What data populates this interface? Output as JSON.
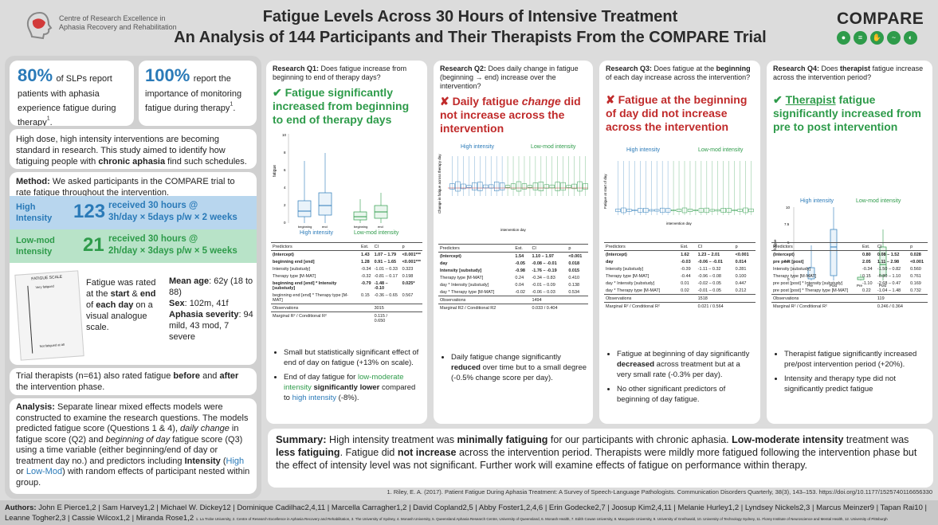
{
  "header": {
    "title_line1": "Fatigue Levels Across 30 Hours of Intensive Treatment",
    "title_line2": "An Analysis of 144 Participants and Their Therapists From the COMPARE Trial",
    "left_logo": "Centre of Research Excellence in Aphasia Recovery and Rehabilitation",
    "right_logo": "COMPARE"
  },
  "left": {
    "stat1_num": "80%",
    "stat1_txt": "of SLPs report patients with aphasia experience fatigue during therapy",
    "stat1_sup": "1",
    "stat1_end": ".",
    "stat2_num": "100%",
    "stat2_txt": "report the importance of monitoring fatigue during therapy",
    "stat2_sup": "1",
    "stat2_end": ".",
    "intro_a": "High dose, high intensity interventions are becoming standard in research. This study aimed to identify how fatiguing people with ",
    "intro_b": "chronic aphasia",
    "intro_c": " find such schedules.",
    "method_label": "Method:",
    "method_txt": " We asked participants in the COMPARE trial to rate fatigue throughout the intervention.",
    "high_label": "High Intensity",
    "high_n": "123",
    "high_desc1": "received 30 hours @",
    "high_desc2": "3h/day × 5days p/w × 2 weeks",
    "low_label": "Low-mod Intensity",
    "low_n": "21",
    "low_desc1": "received 30 hours @",
    "low_desc2": "2h/day × 3days p/w × 5 weeks",
    "scale_label": "FATIGUE SCALE",
    "scale_top": "Very fatigued",
    "scale_bottom": "Not fatigued at all",
    "rated_a": "Fatigue was rated at the ",
    "rated_b": "start",
    "rated_c": " & ",
    "rated_d": "end",
    "rated_e": " of ",
    "rated_f": "each day",
    "rated_g": " on a visual analogue scale.",
    "age_label": "Mean age",
    "age_val": ": 62y (18 to 88)",
    "sex_label": "Sex",
    "sex_val": ": 102m, 41f",
    "sev_label": "Aphasia severity",
    "sev_val": ": 94 mild, 43 mod, 7 severe",
    "ther_a": "Trial therapists (n=61) also rated fatigue ",
    "ther_b": "before",
    "ther_c": " and ",
    "ther_d": "after",
    "ther_e": " the intervention phase.",
    "analysis_label": "Analysis:",
    "analysis_1": " Separate linear mixed effects models were constructed to examine the research questions. The models predicted fatigue score (Questions 1 & 4), ",
    "analysis_2": "daily change",
    "analysis_3": " in fatigue score (Q2) and ",
    "analysis_4": "beginning of day",
    "analysis_5": " fatigue score (Q3) using a time variable (either beginning/end of day or treatment day no.) and predictors including ",
    "analysis_6": "Intensity",
    "analysis_7": " (",
    "analysis_8": "High",
    "analysis_9": " or ",
    "analysis_10": "Low-Mod",
    "analysis_11": ") with random effects of participant nested within group."
  },
  "q1": {
    "title_b": "Research Q1:",
    "title": " Does fatigue increase from beginning to end of therapy days?",
    "answer": "Fatigue significantly increased from beginning to end of therapy days",
    "ylabel": "fatigue",
    "high": "High intensity",
    "low": "Low-mod intensity",
    "ticks": [
      "beginning",
      "end",
      "beginning",
      "end"
    ],
    "yticks": [
      "0",
      "2",
      "4",
      "6",
      "8",
      "10"
    ],
    "table_head": [
      "Predictors",
      "Est.",
      "CI",
      "p"
    ],
    "rows": [
      [
        "(Intercept)",
        "1.43",
        "1.07 – 1.79",
        "<0.001***"
      ],
      [
        "beginning end [end]",
        "1.28",
        "0.91 – 1.65",
        "<0.001***"
      ],
      [
        "Intensity [substudy]",
        "-0.34",
        "-1.01 – 0.33",
        "0.323"
      ],
      [
        "Therapy type [M-MAT]",
        "-0.32",
        "-0.81 – 0.17",
        "0.198"
      ],
      [
        "beginning end [end] * Intensity [substudy]",
        "-0.79",
        "-1.48 – -0.10",
        "0.025*"
      ],
      [
        "beginning end [end] * Therapy type [M-MAT]",
        "0.15",
        "-0.36 – 0.65",
        "0.567"
      ]
    ],
    "obs_label": "Observations",
    "obs": "3015",
    "r2_label": "Marginal R² / Conditional R²",
    "r2": "0.115 / 0.650",
    "bullet1": "Small but statistically significant effect of end of day on fatigue (+13% on scale).",
    "bullet2_a": "End of day fatigue for ",
    "bullet2_b": "low-moderate intensity",
    "bullet2_c": " significantly lower",
    "bullet2_d": " compared to ",
    "bullet2_e": "high intensity",
    "bullet2_f": " (-8%)."
  },
  "q2": {
    "title_b": "Research Q2:",
    "title": " Does daily change in fatigue (beginning → end) increase over the intervention?",
    "answer_a": "Daily fatigue ",
    "answer_b": "change",
    "answer_c": " did not increase across the intervention",
    "ylabel": "Change in fatigue across therapy day",
    "xlabel": "intervention day",
    "high": "High intensity",
    "low": "Low-mod intensity",
    "table_head": [
      "Predictors",
      "Est.",
      "CI",
      "p"
    ],
    "rows": [
      [
        "(Intercept)",
        "1.54",
        "1.10 – 1.97",
        "<0.001"
      ],
      [
        "day",
        "-0.05",
        "-0.08 – -0.01",
        "0.018"
      ],
      [
        "Intensity [substudy]",
        "-0.98",
        "-1.76 – -0.19",
        "0.015"
      ],
      [
        "Therapy type [M-MAT]",
        "0.24",
        "-0.34 – 0.83",
        "0.410"
      ],
      [
        "day * Intensity [substudy]",
        "0.04",
        "-0.01 – 0.09",
        "0.138"
      ],
      [
        "day * Therapy type [M-MAT]",
        "-0.02",
        "-0.06 – 0.03",
        "0.534"
      ]
    ],
    "obs_label": "Observations",
    "obs": "1494",
    "r2_label": "Marginal R2 / Conditional R2",
    "r2": "0.033 / 0.404",
    "bullet_a": "Daily fatigue change significantly ",
    "bullet_b": "reduced",
    "bullet_c": " over time but to a small degree (-0.5% change score per day)."
  },
  "q3": {
    "title_b": "Research Q3:",
    "title_c": " Does fatigue at the ",
    "title_d": "beginning",
    "title_e": " of each day increase across the intervention?",
    "answer": "Fatigue at the beginning of day did not increase across the intervention",
    "ylabel": "Fatigue at start of day",
    "xlabel": "intervention day",
    "high": "High intensity",
    "low": "Low-mod intensity",
    "table_head": [
      "Predictors",
      "Est.",
      "CI",
      "p"
    ],
    "rows": [
      [
        "(Intercept)",
        "1.62",
        "1.23 – 2.01",
        "<0.001"
      ],
      [
        "day",
        "-0.03",
        "-0.06 – -0.01",
        "0.014"
      ],
      [
        "Intensity [substudy]",
        "-0.39",
        "-1.11 – 0.32",
        "0.281"
      ],
      [
        "Therapy type [M-MAT]",
        "-0.44",
        "-0.96 – 0.08",
        "0.100"
      ],
      [
        "day * Intensity [substudy]",
        "0.01",
        "-0.02 – 0.05",
        "0.447"
      ],
      [
        "day * Therapy type [M-MAT]",
        "0.02",
        "-0.01 – 0.05",
        "0.212"
      ]
    ],
    "obs_label": "Observations",
    "obs": "1518",
    "r2_label": "Marginal R² / Conditional R²",
    "r2": "0.021 / 0.564",
    "bullet1_a": "Fatigue at beginning of day significantly ",
    "bullet1_b": "decreased",
    "bullet1_c": " across treatment but at a very small rate (-0.3% per day).",
    "bullet2": "No other significant predictors of beginning of day fatigue."
  },
  "q4": {
    "title_b": "Research Q4:",
    "title_c": " Does ",
    "title_d": "therapist",
    "title_e": " fatigue increase across the intervention period?",
    "answer_a": "Therapist",
    "answer_b": " fatigue significantly increased from pre to post intervention",
    "ylabel": "fatigue",
    "high": "High intensity",
    "low": "Low-mod intensity",
    "ticks": [
      "Pre",
      "Post",
      "Pre",
      "Post"
    ],
    "yticks": [
      "0",
      "2.5",
      "5",
      "7.5",
      "10"
    ],
    "table_head": [
      "Predictors",
      "Est.",
      "CI",
      "p"
    ],
    "rows": [
      [
        "(Intercept)",
        "0.80",
        "0.08 – 1.52",
        "0.028"
      ],
      [
        "pre post [post]",
        "2.05",
        "1.11 – 2.98",
        "<0.001"
      ],
      [
        "Intensity [substudy]",
        "-0.34",
        "-1.50 – 0.82",
        "0.560"
      ],
      [
        "Therapy type [M-MAT]",
        "0.15",
        "-0.80 – 1.10",
        "0.761"
      ],
      [
        "pre post [post] * Intensity [substudy]",
        "-1.10",
        "-2.68 – 0.47",
        "0.169"
      ],
      [
        "pre post [post] * Therapy type [M-MAT]",
        "0.22",
        "-1.04 – 1.48",
        "0.732"
      ]
    ],
    "obs_label": "Observations",
    "obs": "119",
    "r2_label": "Marginal R² / Conditional R²",
    "r2": "0.246 / 0.364",
    "bullet1": "Therapist fatigue significantly increased pre/post intervention period (+20%).",
    "bullet2": "Intensity and therapy type did not significantly predict fatigue"
  },
  "summary": {
    "label": "Summary:",
    "a": " High intensity treatment was ",
    "b": "minimally fatiguing",
    "c": " for our participants with chronic aphasia. ",
    "d": "Low-moderate intensity",
    "e": " treatment was ",
    "f": "less fatiguing",
    "g": ". Fatigue did ",
    "h": "not increase",
    "i": " across the intervention period. Therapists were mildly more fatigued following the intervention phase but the effect of intensity level was not significant. Further work will examine effects of fatigue on performance within therapy."
  },
  "reference": "1. Riley, E. A. (2017). Patient Fatigue During Aphasia Treatment: A Survey of Speech-Language Pathologists. Communication Disorders Quarterly, 38(3), 143–153. https://doi.org/10.1177/1525740116656330",
  "footer": {
    "label": "Authors:",
    "authors": " John E Pierce1,2 | Sam Harvey1,2 | Michael W. Dickey12 | Dominique Cadilhac2,4,11 | Marcella Carragher1,2 | David Copland2,5 | Abby Foster1,2,4,6 | Erin Godecke2,7 | Joosup Kim2,4,11 | Melanie Hurley1,2 | Lyndsey Nickels2,3 | Marcus Meinzer9 | Tapan Rai10 | Leanne Togher2,3 | Cassie Wilcox1,2 | Miranda Rose1,2",
    "affil": "1. La Trobe University, 2. Centre of Research Excellence in Aphasia Recovery and Rehabilitation, 3. The University of Sydney, 4. Monash University, 5. Queensland Aphasia Research Centre, University of Queensland, 6. Monash Health, 7. Edith Cowan University, 8. Macquarie University, 9. University of Greifswald, 10. University of Technology Sydney, 11. Florey Institute of Neuroscience and Mental Health, 12. University of Pittsburgh"
  },
  "colors": {
    "high": "#2a7ab8",
    "low": "#2e9b4a",
    "no": "#c02a2a"
  }
}
